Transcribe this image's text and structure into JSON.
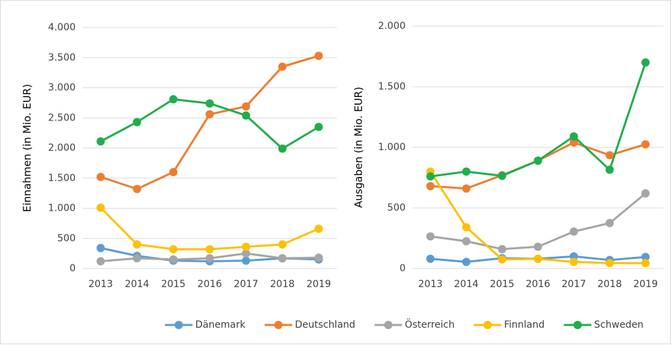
{
  "legend": [
    {
      "name": "Dänemark",
      "color": "#5b9bd5"
    },
    {
      "name": "Deutschland",
      "color": "#ed7d31"
    },
    {
      "name": "Österreich",
      "color": "#a5a5a5"
    },
    {
      "name": "Finnland",
      "color": "#ffc000"
    },
    {
      "name": "Schweden",
      "color": "#1fae4b"
    }
  ],
  "chart_data": [
    {
      "type": "line",
      "y_label": "Einnahmen (in Mio. EUR)",
      "categories": [
        "2013",
        "2014",
        "2015",
        "2016",
        "2017",
        "2018",
        "2019"
      ],
      "series": [
        {
          "values": [
            340,
            210,
            130,
            120,
            130,
            170,
            150
          ]
        },
        {
          "values": [
            1520,
            1320,
            1600,
            2560,
            2690,
            3350,
            3530
          ]
        },
        {
          "values": [
            120,
            170,
            150,
            170,
            250,
            170,
            180
          ]
        },
        {
          "values": [
            1010,
            400,
            320,
            320,
            360,
            400,
            660
          ]
        },
        {
          "values": [
            2110,
            2430,
            2810,
            2740,
            2540,
            1990,
            2350
          ]
        }
      ],
      "ylim": [
        0,
        4000
      ],
      "yticks": [
        0,
        500,
        {
          "value": 1000,
          "label": "1.000"
        },
        {
          "value": 1500,
          "label": "1.500"
        },
        {
          "value": 2000,
          "label": "2.000"
        },
        {
          "value": 2500,
          "label": "2.500"
        },
        {
          "value": 3000,
          "label": "3.000"
        },
        {
          "value": 3500,
          "label": "3.500"
        },
        {
          "value": 4000,
          "label": "4.000"
        }
      ],
      "grid": true
    },
    {
      "type": "line",
      "y_label": "Ausgaben (in Mio. EUR)",
      "categories": [
        "2013",
        "2014",
        "2015",
        "2016",
        "2017",
        "2018",
        "2019"
      ],
      "series": [
        {
          "values": [
            80,
            55,
            85,
            80,
            100,
            70,
            95
          ]
        },
        {
          "values": [
            680,
            660,
            770,
            890,
            1040,
            935,
            1025
          ]
        },
        {
          "values": [
            265,
            225,
            160,
            180,
            305,
            375,
            620
          ]
        },
        {
          "values": [
            800,
            340,
            75,
            80,
            55,
            45,
            45
          ]
        },
        {
          "values": [
            760,
            800,
            765,
            890,
            1090,
            815,
            1700
          ]
        }
      ],
      "ylim": [
        0,
        2000
      ],
      "yticks": [
        0,
        500,
        {
          "value": 1000,
          "label": "1.000"
        },
        {
          "value": 1500,
          "label": "1.500"
        },
        {
          "value": 2000,
          "label": "2.000"
        }
      ],
      "grid": true
    }
  ]
}
